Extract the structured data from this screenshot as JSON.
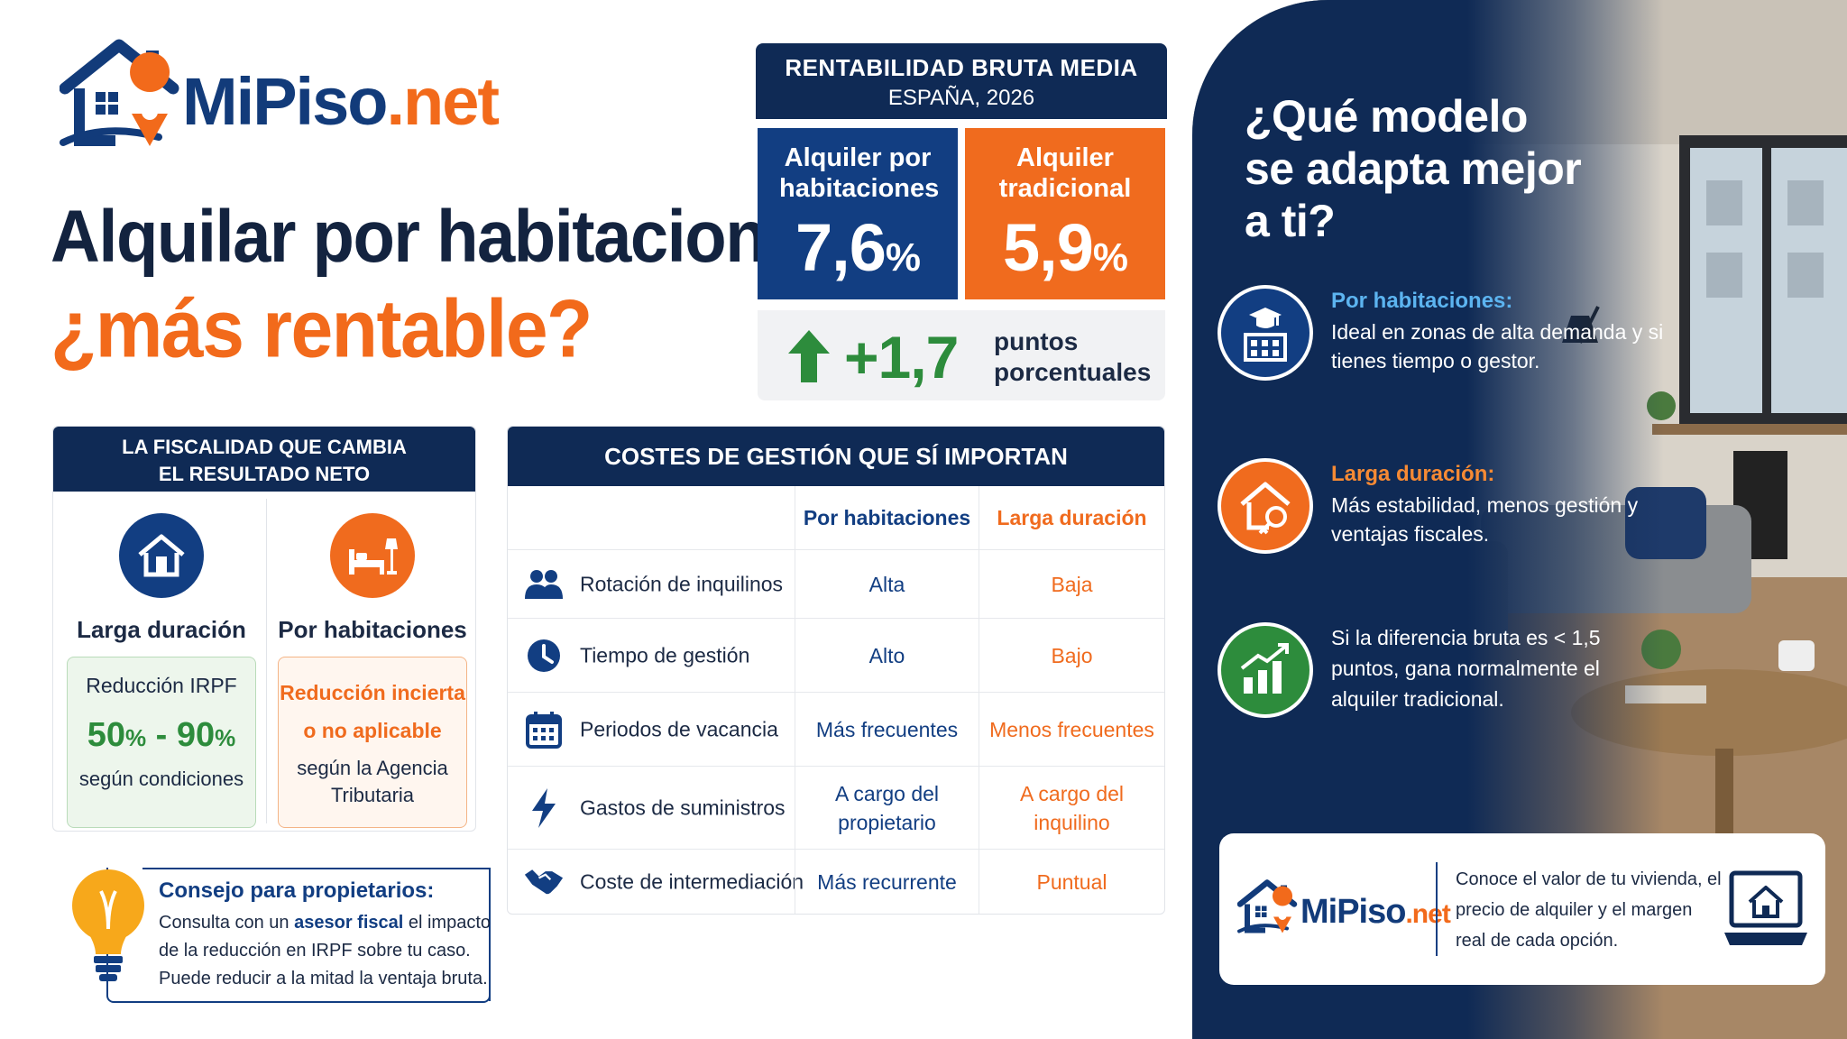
{
  "brand": {
    "name_part1": "MiPiso",
    "name_part2": ".net"
  },
  "headline": {
    "line1": "Alquilar por habitaciones",
    "line2": "¿más rentable?"
  },
  "rentabilidad": {
    "title": "RENTABILIDAD BRUTA MEDIA",
    "subtitle": "ESPAÑA, 2026",
    "habitaciones": {
      "label": "Alquiler por habitaciones",
      "value": "7,6",
      "unit": "%"
    },
    "tradicional": {
      "label": "Alquiler tradicional",
      "value": "5,9",
      "unit": "%"
    },
    "delta": {
      "value": "+1,7",
      "label_line1": "puntos",
      "label_line2": "porcentuales"
    }
  },
  "fiscalidad": {
    "title_line1": "LA FISCALIDAD QUE CAMBIA",
    "title_line2": "EL RESULTADO NETO",
    "larga": {
      "name": "Larga duración",
      "line1": "Reducción IRPF",
      "value_a": "50",
      "value_b": "90",
      "unit": "%",
      "line3": "según condiciones"
    },
    "habitaciones": {
      "name": "Por habitaciones",
      "line1": "Reducción incierta",
      "line2": "o no aplicable",
      "line3": "según la Agencia",
      "line4": "Tributaria"
    }
  },
  "consejo": {
    "title": "Consejo para propietarios:",
    "line1_pre": "Consulta con un ",
    "line1_hl": "asesor fiscal",
    "line1_post": " el impacto",
    "line2": "de la reducción en IRPF sobre tu caso.",
    "line3": "Puede reducir a la mitad la ventaja bruta."
  },
  "costes": {
    "title": "COSTES DE GESTIÓN QUE SÍ IMPORTAN",
    "col_hab": "Por habitaciones",
    "col_larga": "Larga duración",
    "rows": [
      {
        "label": "Rotación de inquilinos",
        "hab": "Alta",
        "larga": "Baja",
        "icon": "people-icon"
      },
      {
        "label": "Tiempo de gestión",
        "hab": "Alto",
        "larga": "Bajo",
        "icon": "clock-icon"
      },
      {
        "label": "Periodos de vacancia",
        "hab": "Más frecuentes",
        "larga": "Menos frecuentes",
        "icon": "calendar-icon"
      },
      {
        "label": "Gastos de suministros",
        "hab": "A cargo del propietario",
        "larga": "A cargo del inquilino",
        "icon": "lightning-icon"
      },
      {
        "label": "Coste de intermediación",
        "hab": "Más recurrente",
        "larga": "Puntual",
        "icon": "handshake-icon"
      }
    ]
  },
  "modelo": {
    "question_line1": "¿Qué modelo",
    "question_line2": "se adapta mejor",
    "question_line3": "a ti?",
    "options": [
      {
        "title": "Por habitaciones:",
        "text": "Ideal en zonas de alta demanda y si tienes tiempo o gestor."
      },
      {
        "title": "Larga duración:",
        "text": "Más estabilidad, menos gestión y ventajas fiscales."
      },
      {
        "title": "",
        "text": "Si la diferencia bruta es < 1,5 puntos, gana normalmente el alquiler tradicional."
      }
    ]
  },
  "cta": {
    "text": "Conoce el valor de tu vivienda, el precio de alquiler y el margen real de cada opción."
  },
  "colors": {
    "navy": "#0f2a55",
    "blue": "#123e82",
    "orange": "#f06b1e",
    "green": "#2d8c3c"
  }
}
